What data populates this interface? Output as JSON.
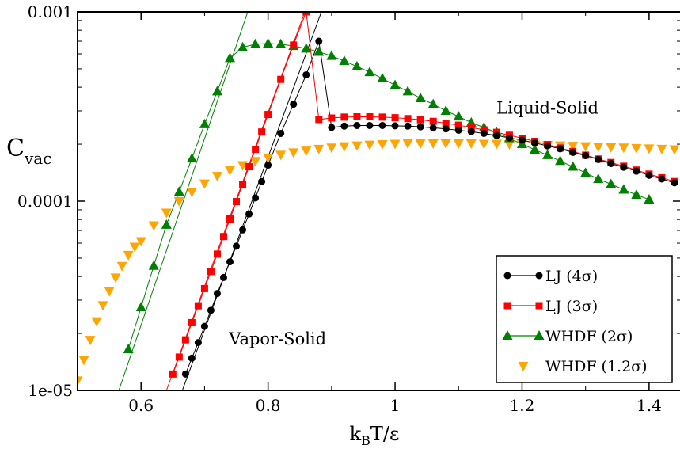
{
  "chart_data": {
    "type": "scatter",
    "title": "",
    "xlabel": "k_B T/ε",
    "xlabel_parts": {
      "main": "k",
      "sub": "B",
      "rest": "T/ε"
    },
    "ylabel": "C_vac",
    "ylabel_parts": {
      "main": "C",
      "sub": "vac"
    },
    "xlim": [
      0.5,
      1.45
    ],
    "ylim": [
      1e-05,
      0.001
    ],
    "yscale": "log",
    "grid": false,
    "legend_position": "bottom-right",
    "x_ticks": [
      0.6,
      0.8,
      1.0,
      1.2,
      1.4
    ],
    "x_tick_labels": [
      "0.6",
      "0.8",
      "1",
      "1.2",
      "1.4"
    ],
    "y_ticks": [
      1e-05,
      0.0001,
      0.001
    ],
    "y_tick_labels": [
      "1e-05",
      "0.0001",
      "0.001"
    ],
    "annotations": [
      {
        "text": "Liquid-Solid",
        "x": 1.24,
        "y": 0.00029
      },
      {
        "text": "Vapor-Solid",
        "x": 0.815,
        "y": 1.75e-05
      }
    ],
    "series": [
      {
        "name": "LJ (4σ)",
        "marker": "circle",
        "color": "#000000",
        "line": true,
        "x": [
          0.67,
          0.68,
          0.69,
          0.7,
          0.71,
          0.72,
          0.73,
          0.74,
          0.75,
          0.76,
          0.77,
          0.78,
          0.79,
          0.8,
          0.82,
          0.84,
          0.86,
          0.88,
          0.9,
          0.92,
          0.94,
          0.96,
          0.98,
          1.0,
          1.02,
          1.04,
          1.06,
          1.08,
          1.1,
          1.12,
          1.14,
          1.16,
          1.18,
          1.2,
          1.22,
          1.24,
          1.26,
          1.28,
          1.3,
          1.32,
          1.34,
          1.36,
          1.38,
          1.4,
          1.42,
          1.44
        ],
        "y": [
          1.22e-05,
          1.48e-05,
          1.79e-05,
          2.18e-05,
          2.65e-05,
          3.25e-05,
          3.95e-05,
          4.78e-05,
          5.78e-05,
          7.05e-05,
          8.55e-05,
          0.000104,
          0.000127,
          0.000155,
          0.000228,
          0.000325,
          0.000465,
          0.0007,
          0.000245,
          0.000249,
          0.000251,
          0.000251,
          0.000251,
          0.00025,
          0.000249,
          0.000247,
          0.000244,
          0.000241,
          0.000237,
          0.000233,
          0.000228,
          0.000222,
          0.000216,
          0.00021,
          0.000203,
          0.000196,
          0.000189,
          0.000181,
          0.000174,
          0.000166,
          0.000158,
          0.000151,
          0.000144,
          0.000137,
          0.000131,
          0.000125
        ]
      },
      {
        "name": "LJ (3σ)",
        "marker": "square",
        "color": "#ff0000",
        "line": true,
        "x": [
          0.65,
          0.66,
          0.67,
          0.68,
          0.69,
          0.7,
          0.71,
          0.72,
          0.73,
          0.74,
          0.75,
          0.76,
          0.77,
          0.78,
          0.79,
          0.8,
          0.82,
          0.84,
          0.86,
          0.88,
          0.9,
          0.92,
          0.94,
          0.96,
          0.98,
          1.0,
          1.02,
          1.04,
          1.06,
          1.08,
          1.1,
          1.12,
          1.14,
          1.16,
          1.18,
          1.2,
          1.22,
          1.24,
          1.26,
          1.28,
          1.3,
          1.32,
          1.34,
          1.36,
          1.38,
          1.4,
          1.42,
          1.44
        ],
        "y": [
          1.22e-05,
          1.5e-05,
          1.85e-05,
          2.28e-05,
          2.8e-05,
          3.45e-05,
          4.25e-05,
          5.25e-05,
          6.5e-05,
          8.05e-05,
          9.95e-05,
          0.000123,
          0.000152,
          0.000188,
          0.000232,
          0.000287,
          0.00044,
          0.000668,
          0.001,
          0.00027,
          0.000275,
          0.000278,
          0.000279,
          0.000279,
          0.000278,
          0.000276,
          0.000273,
          0.000269,
          0.000264,
          0.000258,
          0.000252,
          0.000245,
          0.000238,
          0.000231,
          0.000223,
          0.000215,
          0.000207,
          0.000199,
          0.000191,
          0.000183,
          0.000175,
          0.000167,
          0.00016,
          0.000153,
          0.000146,
          0.000139,
          0.000133,
          0.000127
        ]
      },
      {
        "name": "WHDF (2σ)",
        "marker": "triangle-up",
        "color": "#008000",
        "line": true,
        "x": [
          0.58,
          0.6,
          0.62,
          0.64,
          0.66,
          0.68,
          0.7,
          0.72,
          0.74,
          0.76,
          0.78,
          0.8,
          0.82,
          0.84,
          0.86,
          0.88,
          0.9,
          0.92,
          0.94,
          0.96,
          0.98,
          1.0,
          1.02,
          1.04,
          1.06,
          1.08,
          1.1,
          1.12,
          1.14,
          1.16,
          1.18,
          1.2,
          1.22,
          1.24,
          1.26,
          1.28,
          1.3,
          1.32,
          1.34,
          1.36,
          1.38,
          1.4
        ],
        "y": [
          1.65e-05,
          2.75e-05,
          4.55e-05,
          7.5e-05,
          0.000112,
          0.000168,
          0.000255,
          0.00038,
          0.00057,
          0.00065,
          0.000675,
          0.00068,
          0.000675,
          0.00066,
          0.00064,
          0.000615,
          0.000585,
          0.00055,
          0.000515,
          0.00048,
          0.000445,
          0.00041,
          0.00038,
          0.00035,
          0.000325,
          0.0003,
          0.00028,
          0.00026,
          0.000245,
          0.00023,
          0.000215,
          0.0002,
          0.000187,
          0.000175,
          0.000163,
          0.000152,
          0.000141,
          0.000131,
          0.000123,
          0.000115,
          0.000108,
          0.000102
        ]
      },
      {
        "name": "WHDF (1.2σ)",
        "marker": "triangle-down",
        "color": "#ffa500",
        "line": false,
        "x": [
          0.5,
          0.51,
          0.52,
          0.53,
          0.54,
          0.55,
          0.56,
          0.57,
          0.58,
          0.59,
          0.6,
          0.62,
          0.64,
          0.66,
          0.68,
          0.7,
          0.72,
          0.74,
          0.76,
          0.78,
          0.8,
          0.82,
          0.84,
          0.86,
          0.88,
          0.9,
          0.92,
          0.94,
          0.96,
          0.98,
          1.0,
          1.02,
          1.04,
          1.06,
          1.08,
          1.1,
          1.12,
          1.14,
          1.16,
          1.18,
          1.2,
          1.22,
          1.24,
          1.26,
          1.28,
          1.3,
          1.32,
          1.34,
          1.36,
          1.38,
          1.4,
          1.42,
          1.44
        ],
        "y": [
          1.13e-05,
          1.45e-05,
          1.85e-05,
          2.32e-05,
          2.82e-05,
          3.35e-05,
          3.95e-05,
          4.55e-05,
          5.2e-05,
          5.75e-05,
          6.15e-05,
          7.45e-05,
          8.7e-05,
          0.0001,
          0.000112,
          0.000124,
          0.000136,
          0.000146,
          0.000155,
          0.000163,
          0.00017,
          0.000176,
          0.000181,
          0.000185,
          0.000189,
          0.000192,
          0.000195,
          0.000197,
          0.000199,
          0.0002,
          0.000201,
          0.000202,
          0.000202,
          0.000202,
          0.000202,
          0.000202,
          0.000202,
          0.000201,
          0.000201,
          0.0002,
          0.0002,
          0.000199,
          0.000198,
          0.000197,
          0.000196,
          0.000195,
          0.000194,
          0.000193,
          0.000192,
          0.000191,
          0.00019,
          0.000189,
          0.000188
        ]
      }
    ],
    "fit_lines": [
      {
        "series": "LJ (4σ)",
        "color": "#000000",
        "x": [
          0.665,
          0.884
        ],
        "y": [
          1e-05,
          0.001
        ]
      },
      {
        "series": "LJ (3σ)",
        "color": "#ff0000",
        "x": [
          0.64,
          0.858
        ],
        "y": [
          1e-05,
          0.001
        ]
      },
      {
        "series": "WHDF (2σ)",
        "color": "#008000",
        "x": [
          0.565,
          0.768
        ],
        "y": [
          1e-05,
          0.001
        ]
      }
    ]
  }
}
